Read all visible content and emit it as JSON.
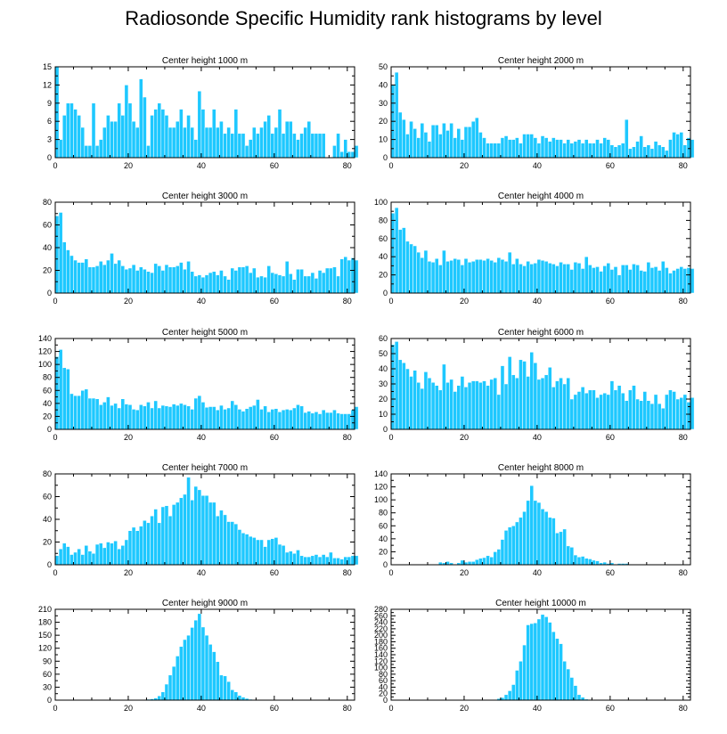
{
  "title": "Radiosonde Specific Humidity rank histograms by level",
  "colors": {
    "bar": "#1ec8ff",
    "bar_edge": "#ffffff",
    "axis": "#000000"
  },
  "chart_data": [
    {
      "type": "bar",
      "title": "Center height 1000 m",
      "xlim": [
        0,
        82
      ],
      "xticks": [
        0,
        20,
        40,
        60,
        80
      ],
      "ylim": [
        0,
        15
      ],
      "yticks": [
        0,
        3,
        6,
        9,
        12,
        15
      ],
      "values": [
        15,
        3,
        7,
        9,
        9,
        8,
        7,
        5,
        2,
        2,
        9,
        2,
        3,
        5,
        7,
        6,
        6,
        9,
        7,
        12,
        9,
        6,
        5,
        13,
        10,
        2,
        7,
        8,
        9,
        8,
        7,
        5,
        5,
        6,
        8,
        5,
        7,
        5,
        3,
        11,
        8,
        5,
        5,
        8,
        5,
        6,
        4,
        5,
        4,
        8,
        4,
        4,
        2,
        3,
        5,
        4,
        5,
        6,
        7,
        4,
        5,
        8,
        4,
        6,
        6,
        4,
        3,
        4,
        5,
        6,
        4,
        4,
        4,
        4,
        0,
        0,
        2,
        4,
        1,
        3,
        1,
        1,
        2
      ],
      "xlabel": "",
      "ylabel": ""
    },
    {
      "type": "bar",
      "title": "Center height 2000 m",
      "xlim": [
        0,
        82
      ],
      "xticks": [
        0,
        20,
        40,
        60,
        80
      ],
      "ylim": [
        0,
        50
      ],
      "yticks": [
        0,
        10,
        20,
        30,
        40,
        50
      ],
      "values": [
        40,
        47,
        25,
        21,
        13,
        20,
        16,
        11,
        19,
        14,
        9,
        18,
        18,
        13,
        19,
        15,
        19,
        11,
        16,
        10,
        17,
        17,
        20,
        22,
        14,
        11,
        8,
        8,
        8,
        8,
        11,
        12,
        10,
        10,
        11,
        8,
        13,
        13,
        13,
        11,
        8,
        12,
        11,
        9,
        11,
        10,
        10,
        8,
        10,
        8,
        9,
        10,
        8,
        10,
        8,
        8,
        10,
        8,
        11,
        10,
        7,
        6,
        7,
        8,
        21,
        5,
        6,
        9,
        12,
        6,
        7,
        5,
        9,
        7,
        6,
        4,
        10,
        14,
        13,
        14,
        7,
        11,
        10
      ],
      "xlabel": "",
      "ylabel": ""
    },
    {
      "type": "bar",
      "title": "Center height 3000 m",
      "xlim": [
        0,
        82
      ],
      "xticks": [
        0,
        20,
        40,
        60,
        80
      ],
      "ylim": [
        0,
        80
      ],
      "yticks": [
        0,
        20,
        40,
        60,
        80
      ],
      "values": [
        68,
        71,
        45,
        38,
        33,
        29,
        27,
        27,
        30,
        23,
        23,
        24,
        28,
        25,
        29,
        35,
        26,
        29,
        24,
        21,
        22,
        25,
        20,
        23,
        21,
        19,
        18,
        26,
        24,
        20,
        25,
        23,
        23,
        24,
        27,
        21,
        28,
        19,
        15,
        16,
        14,
        16,
        18,
        19,
        16,
        20,
        15,
        12,
        22,
        20,
        23,
        23,
        24,
        18,
        22,
        14,
        15,
        14,
        24,
        18,
        17,
        16,
        15,
        28,
        17,
        12,
        21,
        21,
        15,
        15,
        18,
        13,
        20,
        18,
        22,
        22,
        23,
        15,
        30,
        32,
        29,
        31,
        29
      ],
      "xlabel": "",
      "ylabel": ""
    },
    {
      "type": "bar",
      "title": "Center height 4000 m",
      "xlim": [
        0,
        82
      ],
      "xticks": [
        0,
        20,
        40,
        60,
        80
      ],
      "ylim": [
        0,
        100
      ],
      "yticks": [
        0,
        20,
        40,
        60,
        80,
        100
      ],
      "values": [
        88,
        94,
        70,
        72,
        57,
        54,
        52,
        45,
        39,
        47,
        35,
        34,
        38,
        31,
        47,
        35,
        36,
        38,
        37,
        31,
        38,
        34,
        35,
        37,
        37,
        36,
        38,
        36,
        34,
        39,
        37,
        35,
        45,
        32,
        38,
        32,
        30,
        35,
        32,
        33,
        37,
        36,
        35,
        33,
        32,
        30,
        34,
        32,
        32,
        26,
        34,
        33,
        27,
        40,
        31,
        28,
        29,
        24,
        30,
        33,
        26,
        29,
        20,
        31,
        31,
        26,
        32,
        31,
        25,
        24,
        34,
        28,
        29,
        25,
        35,
        28,
        22,
        25,
        27,
        29,
        27,
        28,
        27
      ],
      "xlabel": "",
      "ylabel": ""
    },
    {
      "type": "bar",
      "title": "Center height 5000 m",
      "xlim": [
        0,
        82
      ],
      "xticks": [
        0,
        20,
        40,
        60,
        80
      ],
      "ylim": [
        0,
        140
      ],
      "yticks": [
        0,
        20,
        40,
        60,
        80,
        100,
        120,
        140
      ],
      "values": [
        112,
        123,
        95,
        93,
        55,
        52,
        52,
        60,
        62,
        48,
        48,
        47,
        38,
        42,
        50,
        37,
        40,
        33,
        47,
        39,
        38,
        31,
        30,
        38,
        36,
        42,
        33,
        44,
        33,
        37,
        36,
        35,
        39,
        37,
        40,
        38,
        36,
        31,
        48,
        52,
        42,
        34,
        35,
        35,
        30,
        37,
        31,
        33,
        44,
        38,
        31,
        28,
        32,
        35,
        37,
        46,
        31,
        36,
        27,
        31,
        32,
        27,
        30,
        31,
        30,
        33,
        38,
        36,
        26,
        28,
        25,
        27,
        24,
        30,
        26,
        26,
        30,
        25,
        24,
        24,
        24,
        30,
        35
      ],
      "xlabel": "",
      "ylabel": ""
    },
    {
      "type": "bar",
      "title": "Center height 6000 m",
      "xlim": [
        0,
        82
      ],
      "xticks": [
        0,
        20,
        40,
        60,
        80
      ],
      "ylim": [
        0,
        60
      ],
      "yticks": [
        0,
        10,
        20,
        30,
        40,
        50,
        60
      ],
      "values": [
        56,
        58,
        46,
        44,
        40,
        35,
        39,
        31,
        27,
        38,
        34,
        31,
        29,
        26,
        43,
        31,
        33,
        25,
        29,
        35,
        28,
        31,
        32,
        32,
        31,
        32,
        29,
        33,
        34,
        23,
        42,
        30,
        48,
        36,
        34,
        46,
        45,
        35,
        51,
        44,
        33,
        34,
        36,
        41,
        28,
        32,
        34,
        30,
        34,
        20,
        23,
        25,
        28,
        24,
        26,
        26,
        21,
        23,
        24,
        23,
        32,
        26,
        29,
        24,
        19,
        26,
        29,
        20,
        19,
        25,
        19,
        17,
        23,
        17,
        14,
        23,
        26,
        25,
        20,
        21,
        23,
        18,
        21
      ],
      "xlabel": "",
      "ylabel": ""
    },
    {
      "type": "bar",
      "title": "Center height 7000 m",
      "xlim": [
        0,
        82
      ],
      "xticks": [
        0,
        20,
        40,
        60,
        80
      ],
      "ylim": [
        0,
        80
      ],
      "yticks": [
        0,
        20,
        40,
        60,
        80
      ],
      "values": [
        8,
        14,
        19,
        16,
        9,
        11,
        14,
        9,
        17,
        12,
        10,
        18,
        19,
        15,
        20,
        19,
        21,
        14,
        17,
        22,
        30,
        33,
        30,
        34,
        39,
        37,
        43,
        49,
        37,
        51,
        52,
        43,
        53,
        55,
        59,
        62,
        77,
        57,
        69,
        66,
        61,
        61,
        55,
        55,
        43,
        48,
        44,
        38,
        38,
        36,
        31,
        28,
        27,
        25,
        24,
        22,
        22,
        16,
        22,
        23,
        24,
        18,
        17,
        11,
        12,
        10,
        13,
        8,
        7,
        7,
        8,
        9,
        7,
        9,
        7,
        11,
        6,
        6,
        5,
        7,
        7,
        8,
        8
      ],
      "xlabel": "",
      "ylabel": ""
    },
    {
      "type": "bar",
      "title": "Center height 8000 m",
      "xlim": [
        0,
        82
      ],
      "xticks": [
        0,
        20,
        40,
        60,
        80
      ],
      "ylim": [
        0,
        140
      ],
      "yticks": [
        0,
        20,
        40,
        60,
        80,
        100,
        120,
        140
      ],
      "values": [
        0,
        0,
        0,
        0,
        0,
        0,
        0,
        0,
        0,
        0,
        0,
        0,
        1,
        4,
        3,
        5,
        3,
        1,
        3,
        7,
        4,
        5,
        5,
        8,
        10,
        11,
        14,
        12,
        20,
        24,
        39,
        53,
        58,
        60,
        66,
        73,
        82,
        99,
        122,
        99,
        96,
        86,
        82,
        73,
        72,
        49,
        51,
        55,
        29,
        27,
        15,
        12,
        13,
        10,
        9,
        7,
        6,
        3,
        4,
        2,
        3,
        1,
        2,
        2,
        2,
        1,
        0,
        0,
        0,
        0,
        0,
        0,
        0,
        0,
        1,
        0,
        0,
        0,
        0,
        0,
        0,
        0,
        0
      ],
      "xlabel": "",
      "ylabel": ""
    },
    {
      "type": "bar",
      "title": "Center height 9000 m",
      "xlim": [
        0,
        82
      ],
      "xticks": [
        0,
        20,
        40,
        60,
        80
      ],
      "ylim": [
        0,
        210
      ],
      "yticks": [
        0,
        30,
        60,
        90,
        120,
        150,
        180,
        210
      ],
      "values": [
        0,
        0,
        0,
        0,
        0,
        0,
        0,
        0,
        0,
        0,
        0,
        0,
        0,
        0,
        0,
        0,
        0,
        0,
        0,
        0,
        0,
        0,
        0,
        0,
        1,
        2,
        3,
        5,
        10,
        19,
        37,
        58,
        78,
        102,
        124,
        140,
        150,
        168,
        185,
        200,
        169,
        150,
        129,
        112,
        89,
        58,
        56,
        43,
        24,
        19,
        11,
        7,
        4,
        2,
        1,
        1,
        1,
        0,
        0,
        0,
        0,
        0,
        0,
        0,
        0,
        0,
        0,
        0,
        0,
        0,
        0,
        0,
        0,
        0,
        0,
        0,
        0,
        0,
        0,
        0,
        0,
        0,
        0
      ],
      "xlabel": "",
      "ylabel": ""
    },
    {
      "type": "bar",
      "title": "Center height 10000 m",
      "xlim": [
        0,
        82
      ],
      "xticks": [
        0,
        20,
        40,
        60,
        80
      ],
      "ylim": [
        0,
        280
      ],
      "yticks": [
        0,
        20,
        40,
        60,
        80,
        100,
        120,
        140,
        160,
        180,
        200,
        220,
        240,
        260,
        280
      ],
      "values": [
        0,
        0,
        0,
        0,
        0,
        0,
        0,
        0,
        0,
        0,
        0,
        0,
        0,
        0,
        0,
        0,
        0,
        0,
        0,
        0,
        0,
        0,
        0,
        0,
        0,
        0,
        0,
        0,
        0,
        5,
        8,
        17,
        29,
        48,
        92,
        120,
        170,
        232,
        236,
        238,
        250,
        264,
        257,
        240,
        211,
        190,
        174,
        120,
        96,
        70,
        45,
        17,
        9,
        3,
        2,
        1,
        1,
        0,
        0,
        0,
        0,
        0,
        0,
        0,
        0,
        0,
        0,
        0,
        0,
        0,
        2,
        0,
        0,
        0,
        0,
        0,
        0,
        0,
        0,
        0,
        0,
        0,
        0
      ],
      "xlabel": "",
      "ylabel": ""
    }
  ]
}
